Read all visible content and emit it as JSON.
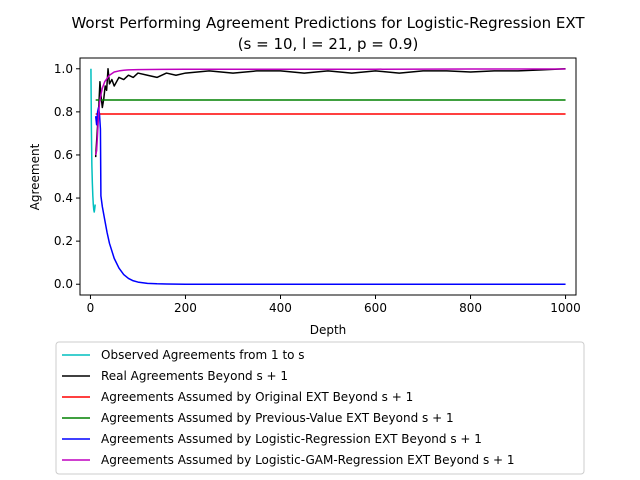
{
  "chart_data": {
    "type": "line",
    "title": "Worst Performing Agreement Predictions for Logistic-Regression EXT",
    "subtitle": "(s = 10, l = 21, p = 0.9)",
    "xlabel": "Depth",
    "ylabel": "Agreement",
    "xlim": [
      -22,
      1022
    ],
    "ylim": [
      -0.05,
      1.05
    ],
    "xticks": [
      0,
      200,
      400,
      600,
      800,
      1000
    ],
    "yticks": [
      0.0,
      0.2,
      0.4,
      0.6,
      0.8,
      1.0
    ],
    "grid": false,
    "legend_position": "below",
    "series": [
      {
        "name": "Observed Agreements from 1 to s",
        "color": "#00bfbf",
        "x": [
          1,
          2,
          3,
          4,
          5,
          6,
          7,
          8,
          9,
          10
        ],
        "y": [
          1.0,
          0.72,
          0.55,
          0.47,
          0.41,
          0.37,
          0.345,
          0.335,
          0.35,
          0.37
        ]
      },
      {
        "name": "Real Agreements Beyond s + 1",
        "color": "#000000",
        "x": [
          11,
          14,
          17,
          20,
          22,
          25,
          28,
          31,
          34,
          37,
          40,
          45,
          50,
          55,
          60,
          70,
          80,
          90,
          100,
          120,
          140,
          160,
          180,
          200,
          250,
          300,
          350,
          400,
          450,
          500,
          550,
          600,
          650,
          700,
          750,
          800,
          850,
          900,
          950,
          1000
        ],
        "y": [
          0.59,
          0.7,
          0.8,
          0.94,
          0.88,
          0.82,
          0.86,
          0.92,
          0.9,
          1.0,
          0.93,
          0.95,
          0.92,
          0.94,
          0.96,
          0.95,
          0.97,
          0.96,
          0.98,
          0.97,
          0.96,
          0.98,
          0.97,
          0.98,
          0.99,
          0.98,
          0.99,
          0.99,
          0.98,
          0.99,
          0.98,
          0.99,
          0.98,
          0.99,
          0.99,
          0.985,
          0.99,
          0.99,
          0.995,
          1.0
        ]
      },
      {
        "name": "Agreements Assumed by Original EXT Beyond s + 1",
        "color": "#ff0000",
        "x": [
          11,
          1000
        ],
        "y": [
          0.79,
          0.79
        ]
      },
      {
        "name": "Agreements Assumed by Previous-Value EXT Beyond s + 1",
        "color": "#008000",
        "x": [
          11,
          1000
        ],
        "y": [
          0.855,
          0.855
        ]
      },
      {
        "name": "Agreements Assumed by Logistic-Regression EXT Beyond s + 1",
        "color": "#0000ff",
        "x": [
          11,
          13,
          15,
          17,
          19,
          21,
          22,
          25,
          30,
          35,
          40,
          50,
          60,
          70,
          80,
          90,
          100,
          120,
          140,
          160,
          200,
          300,
          500,
          1000
        ],
        "y": [
          0.78,
          0.74,
          0.8,
          0.82,
          0.79,
          0.72,
          0.41,
          0.36,
          0.3,
          0.24,
          0.19,
          0.12,
          0.075,
          0.045,
          0.027,
          0.016,
          0.01,
          0.004,
          0.002,
          0.001,
          0.0,
          0.0,
          0.0,
          0.0
        ]
      },
      {
        "name": "Agreements Assumed by Logistic-GAM-Regression EXT Beyond s + 1",
        "color": "#bf00bf",
        "x": [
          11,
          13,
          15,
          17,
          19,
          22,
          25,
          30,
          40,
          50,
          60,
          70,
          80,
          100,
          150,
          200,
          400,
          600,
          800,
          1000
        ],
        "y": [
          0.6,
          0.62,
          0.7,
          0.78,
          0.84,
          0.88,
          0.91,
          0.94,
          0.97,
          0.985,
          0.99,
          0.993,
          0.995,
          0.996,
          0.997,
          0.998,
          0.998,
          0.998,
          0.999,
          0.999
        ]
      }
    ]
  }
}
